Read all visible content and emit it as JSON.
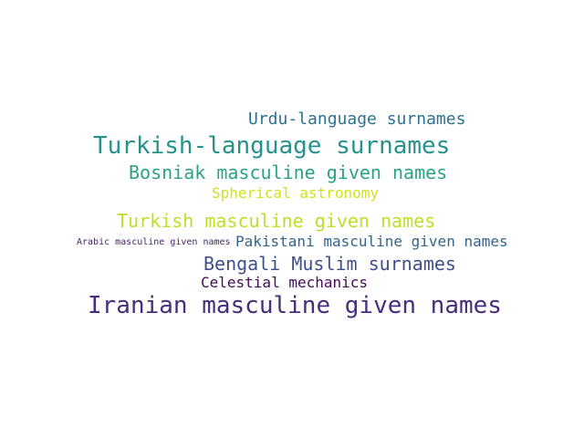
{
  "words": [
    {
      "text": "Urdu-language surnames",
      "color": "#2c728e"
    },
    {
      "text": "Turkish-language surnames",
      "color": "#26928c"
    },
    {
      "text": "Bosniak masculine given names",
      "color": "#2aa383"
    },
    {
      "text": "Spherical astronomy",
      "color": "#d2e21b"
    },
    {
      "text": "Turkish masculine given names",
      "color": "#bddf26"
    },
    {
      "text": "Arabic masculine given names",
      "color": "#482173"
    },
    {
      "text": "Pakistani masculine given names",
      "color": "#32658e"
    },
    {
      "text": "Bengali Muslim surnames",
      "color": "#3f4f8a"
    },
    {
      "text": "Celestial mechanics",
      "color": "#46085c"
    },
    {
      "text": "Iranian masculine given names",
      "color": "#472d7b"
    }
  ]
}
